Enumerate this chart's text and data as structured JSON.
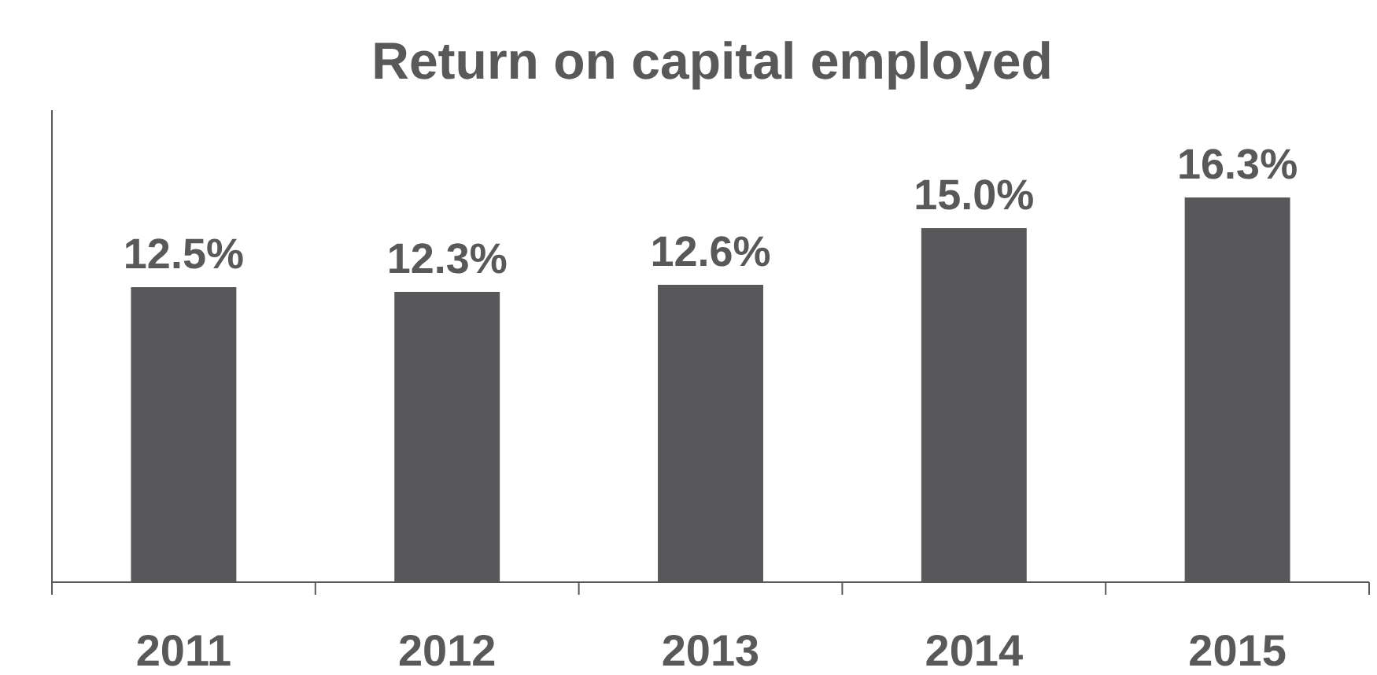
{
  "chart_data": {
    "type": "bar",
    "title": "Return on capital employed",
    "categories": [
      "2011",
      "2012",
      "2013",
      "2014",
      "2015"
    ],
    "values": [
      12.5,
      12.3,
      12.6,
      15.0,
      16.3
    ],
    "value_labels": [
      "12.5%",
      "12.3%",
      "12.6%",
      "15.0%",
      "16.3%"
    ],
    "color": "#58585a",
    "ylim": [
      0,
      20
    ]
  }
}
